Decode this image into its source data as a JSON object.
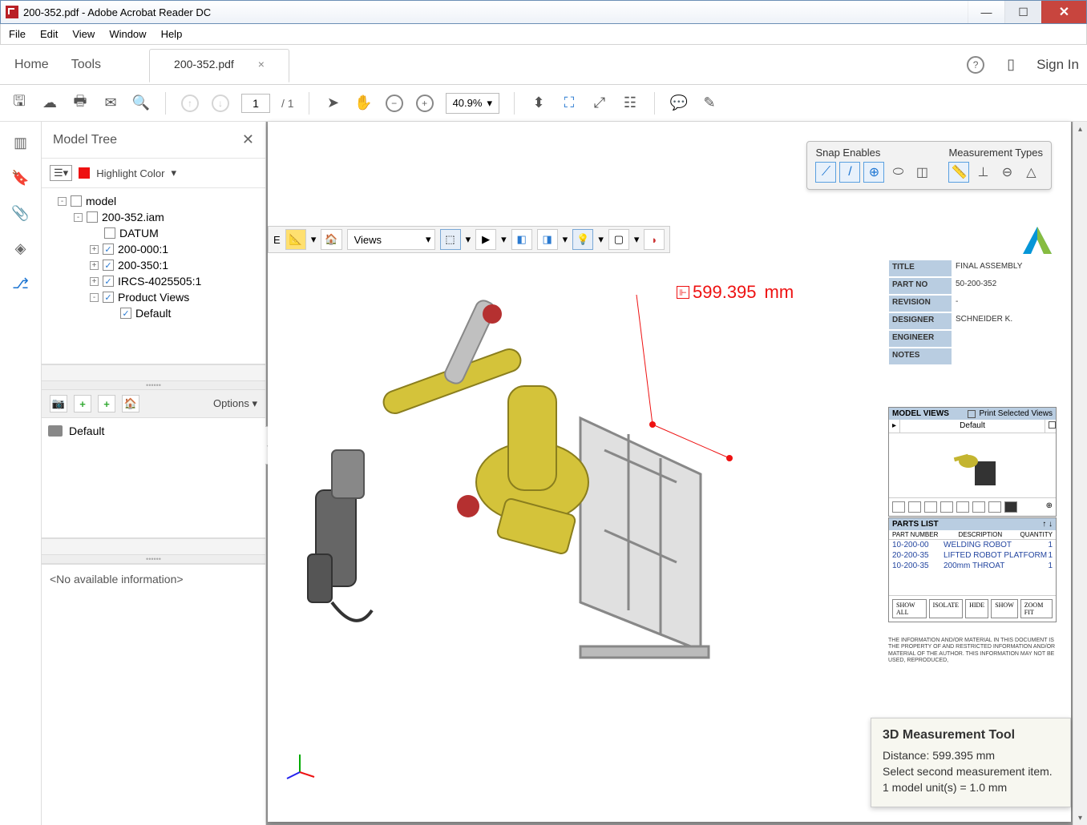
{
  "window": {
    "title": "200-352.pdf - Adobe Acrobat Reader DC"
  },
  "menubar": [
    "File",
    "Edit",
    "View",
    "Window",
    "Help"
  ],
  "tabs": {
    "home": "Home",
    "tools": "Tools",
    "active": "200-352.pdf",
    "signin": "Sign In"
  },
  "toolbar": {
    "page": "1",
    "pages": "/ 1",
    "zoom": "40.9%"
  },
  "panel": {
    "title": "Model Tree",
    "highlight_label": "Highlight Color",
    "tree": [
      {
        "lvl": 1,
        "exp": "-",
        "chk": "",
        "label": "model"
      },
      {
        "lvl": 2,
        "exp": "-",
        "chk": "",
        "label": "200-352.iam"
      },
      {
        "lvl": 3,
        "exp": "",
        "chk": "",
        "label": "DATUM"
      },
      {
        "lvl": 3,
        "exp": "+",
        "chk": "✓",
        "label": "200-000:1"
      },
      {
        "lvl": 3,
        "exp": "+",
        "chk": "✓",
        "label": "200-350:1"
      },
      {
        "lvl": 3,
        "exp": "+",
        "chk": "✓",
        "label": "IRCS-4025505:1"
      },
      {
        "lvl": 3,
        "exp": "-",
        "chk": "✓",
        "label": "Product Views"
      },
      {
        "lvl": 4,
        "exp": "",
        "chk": "✓",
        "label": "Default"
      }
    ],
    "options": "Options",
    "default_view": "Default",
    "no_info": "<No available information>"
  },
  "snap": {
    "enables_label": "Snap Enables",
    "types_label": "Measurement Types"
  },
  "inner_tb": {
    "views": "Views",
    "e_label": "E"
  },
  "measurement": {
    "value": "599.395",
    "unit": "mm"
  },
  "info": [
    {
      "k": "TITLE",
      "v": "FINAL ASSEMBLY"
    },
    {
      "k": "PART NO",
      "v": "50-200-352"
    },
    {
      "k": "REVISION",
      "v": "-"
    },
    {
      "k": "DESIGNER",
      "v": "SCHNEIDER K."
    },
    {
      "k": "ENGINEER",
      "v": ""
    },
    {
      "k": "NOTES",
      "v": ""
    }
  ],
  "model_views": {
    "title": "MODEL VIEWS",
    "print": "Print Selected Views",
    "default": "Default"
  },
  "parts": {
    "title": "PARTS LIST",
    "cols": {
      "a": "PART NUMBER",
      "b": "DESCRIPTION",
      "c": "QUANTITY"
    },
    "rows": [
      {
        "pn": "10-200-00",
        "d": "WELDING ROBOT",
        "q": "1"
      },
      {
        "pn": "20-200-35",
        "d": "LIFTED ROBOT PLATFORM",
        "q": "1"
      },
      {
        "pn": "10-200-35",
        "d": "200mm THROAT",
        "q": "1"
      }
    ],
    "btns": [
      "SHOW ALL",
      "ISOLATE",
      "HIDE",
      "SHOW",
      "ZOOM FIT"
    ],
    "fine": "THE INFORMATION AND/OR MATERIAL IN THIS DOCUMENT IS THE PROPERTY OF AND RESTRICTED INFORMATION AND/OR MATERIAL OF THE AUTHOR. THIS INFORMATION MAY NOT BE USED, REPRODUCED,"
  },
  "tooltip": {
    "title": "3D Measurement Tool",
    "line1": "Distance: 599.395 mm",
    "line2": "Select second measurement item.",
    "line3": "1 model unit(s) = 1.0 mm"
  }
}
